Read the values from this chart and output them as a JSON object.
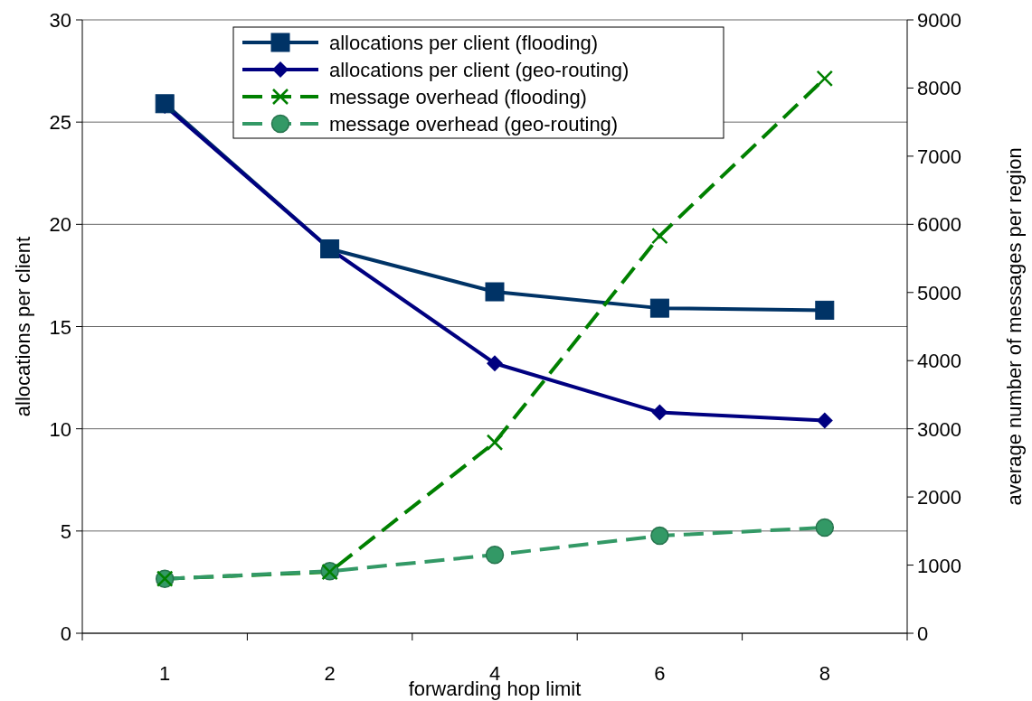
{
  "chart_data": {
    "type": "line",
    "xlabel": "forwarding hop limit",
    "ylabel": "allocations per client",
    "y2label": "average number of messages per region",
    "categories": [
      "1",
      "2",
      "4",
      "6",
      "8"
    ],
    "ylim": [
      0,
      30
    ],
    "yticks": [
      0,
      5,
      10,
      15,
      20,
      25,
      30
    ],
    "y2lim": [
      0,
      9000
    ],
    "y2ticks": [
      0,
      1000,
      2000,
      3000,
      4000,
      5000,
      6000,
      7000,
      8000,
      9000
    ],
    "grid": "y",
    "legend": "top",
    "line_style": "solid",
    "series": [
      {
        "name": "allocations per client (flooding)",
        "color": "#003366",
        "marker": "square",
        "values": [
          25.9,
          18.8,
          16.7,
          15.9,
          15.8
        ]
      },
      {
        "name": "allocations per client (geo-routing)",
        "color": "#000080",
        "marker": "diamond",
        "values": [
          25.8,
          18.8,
          13.2,
          10.8,
          10.4
        ]
      },
      {
        "name": "message overhead (flooding)",
        "color": "#008000",
        "marker": "cross",
        "line_style": "dashed",
        "axis": "y2",
        "values": [
          800,
          900,
          2800,
          5830,
          8140
        ]
      },
      {
        "name": "message overhead (geo-routing)",
        "color": "#339966",
        "marker": "circle",
        "line_style": "dashed",
        "axis": "y2",
        "values": [
          800,
          910,
          1150,
          1430,
          1550
        ]
      }
    ]
  }
}
